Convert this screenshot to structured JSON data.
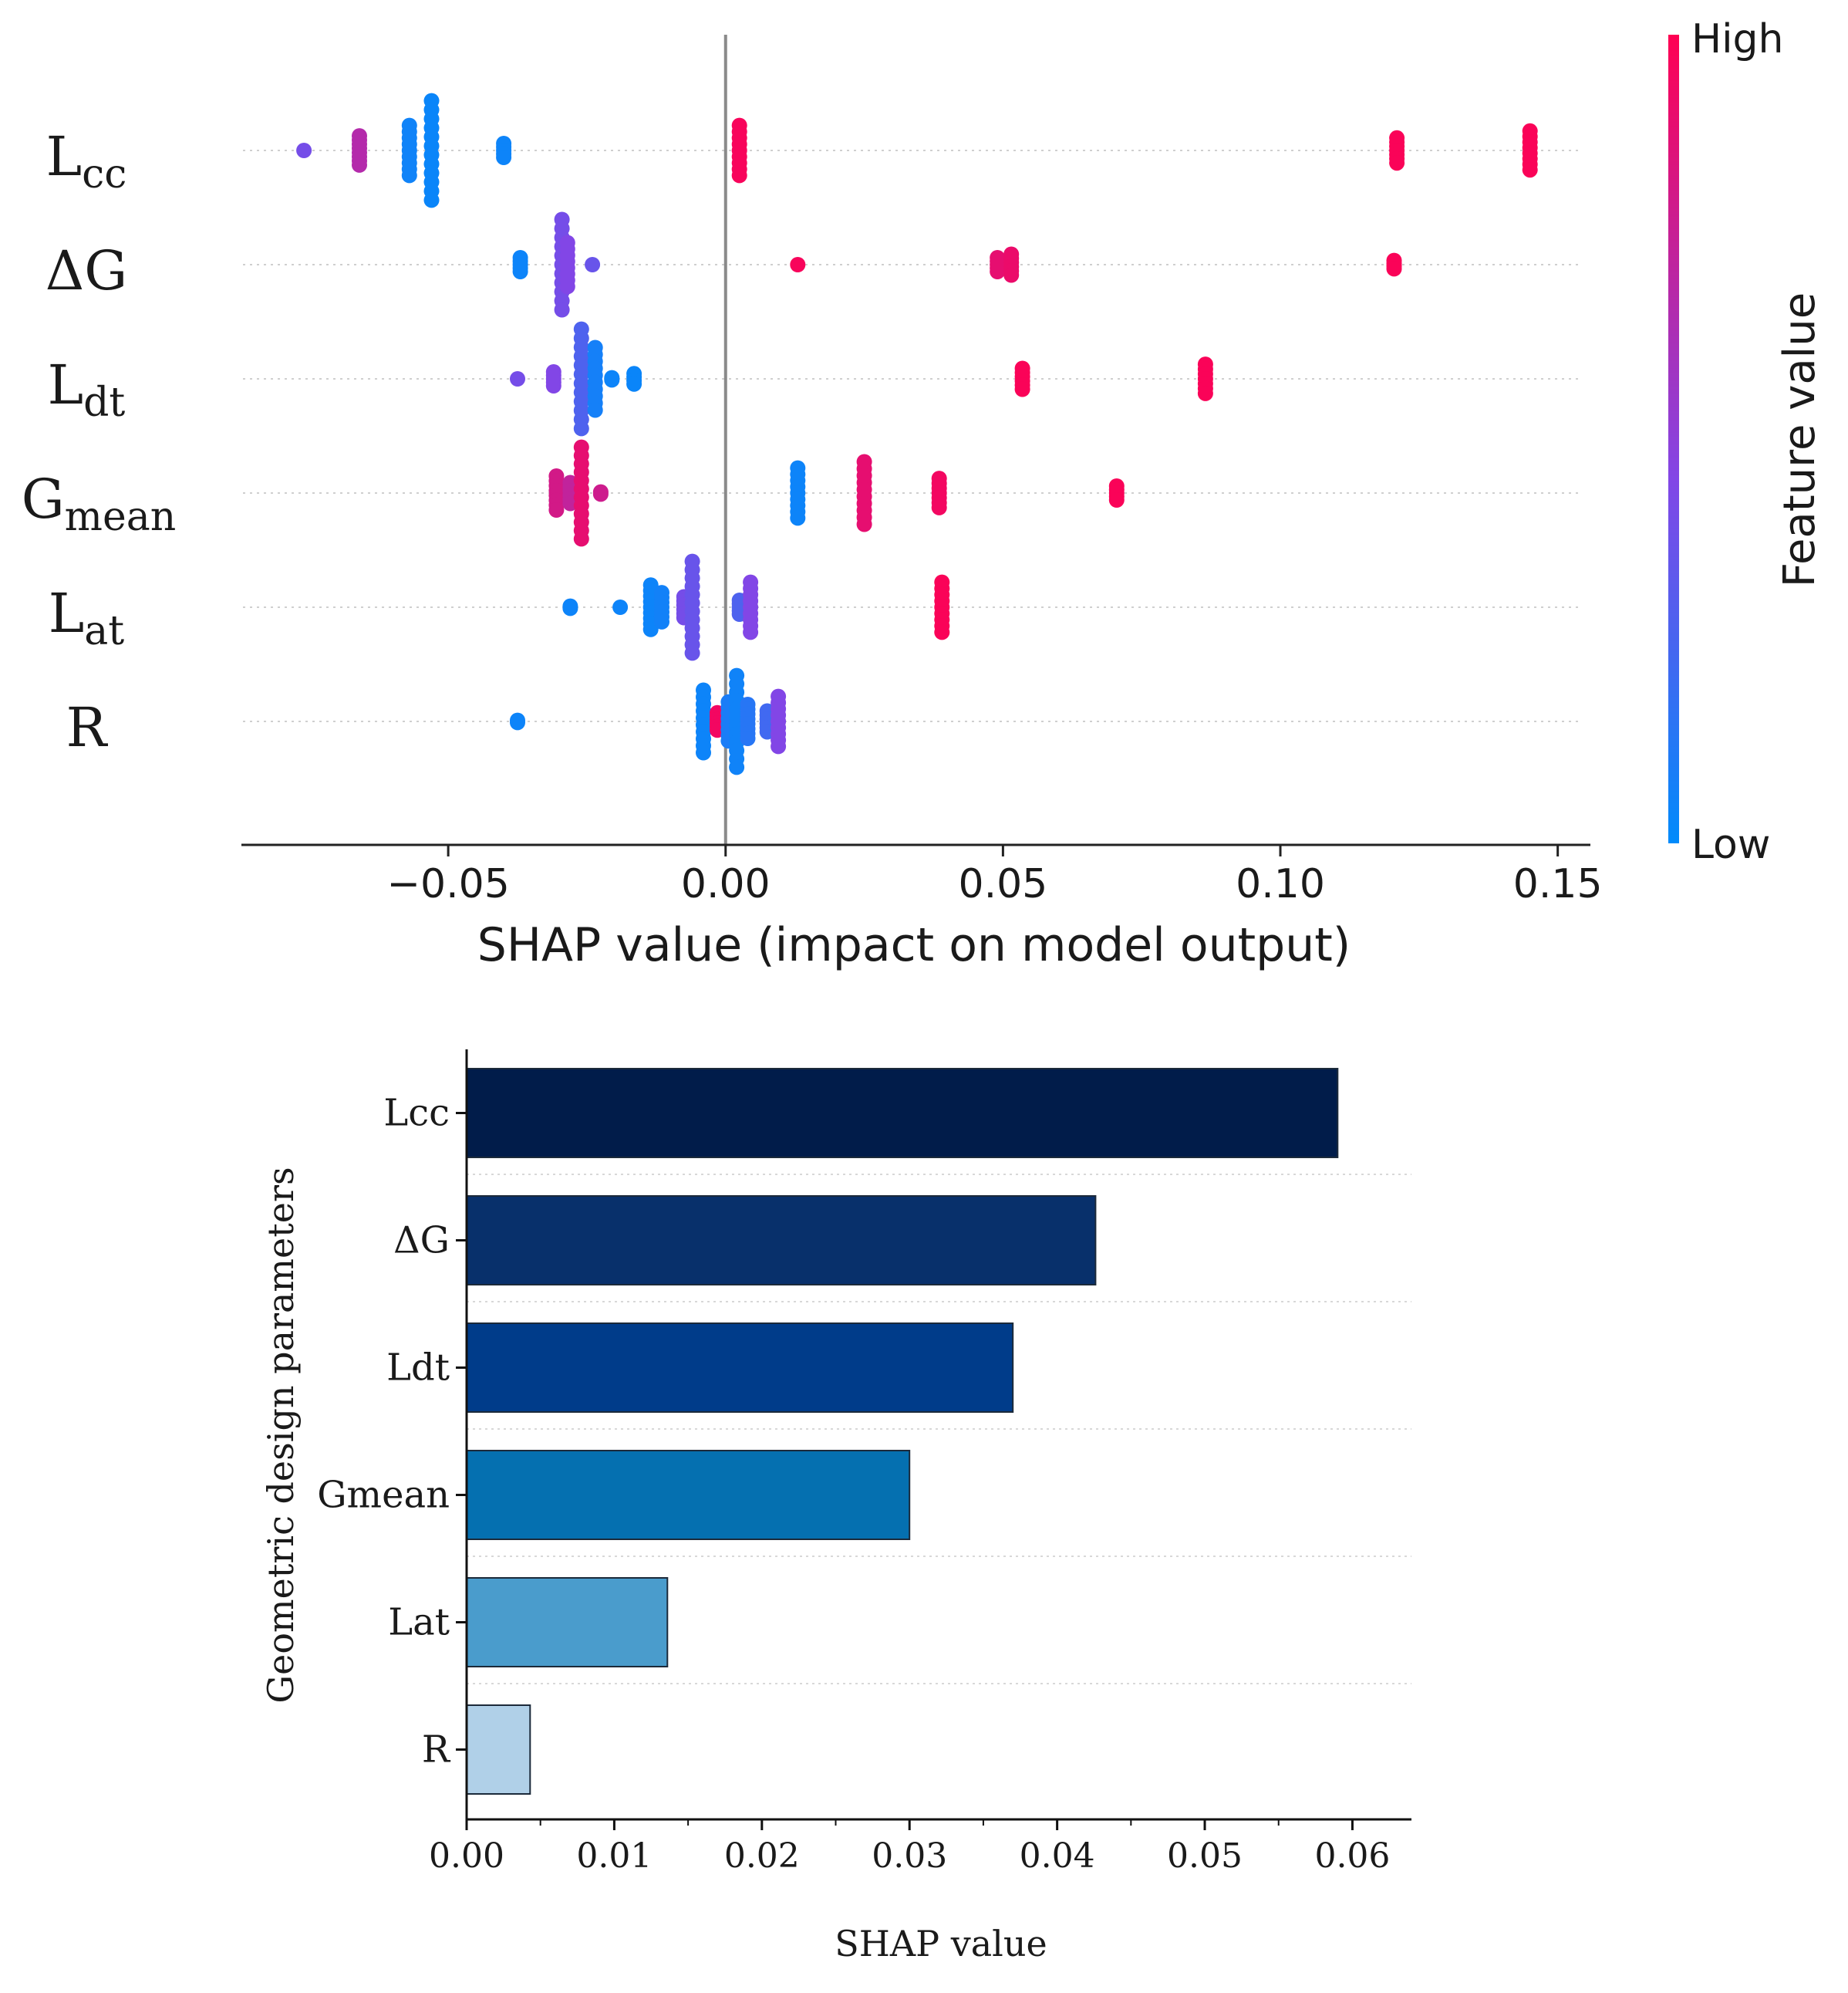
{
  "chart_data": [
    {
      "type": "scatter",
      "subtype": "shap-beeswarm",
      "xlabel": "SHAP value (impact on model output)",
      "xlim": [
        -0.087,
        0.157
      ],
      "xticks": [
        -0.05,
        0.0,
        0.05,
        0.1,
        0.15
      ],
      "xtick_labels": [
        "−0.05",
        "0.00",
        "0.05",
        "0.10",
        "0.15"
      ],
      "zero_line": 0.0,
      "features": [
        {
          "name": "Lcc",
          "base": "L",
          "sub": "cc"
        },
        {
          "name": "ΔG",
          "base": "ΔG",
          "sub": ""
        },
        {
          "name": "Ldt",
          "base": "L",
          "sub": "dt"
        },
        {
          "name": "Gmean",
          "base": "G",
          "sub": "mean"
        },
        {
          "name": "Lat",
          "base": "L",
          "sub": "at"
        },
        {
          "name": "R",
          "base": "R",
          "sub": ""
        }
      ],
      "colorbar": {
        "label": "Feature value",
        "high_label": "High",
        "low_label": "Low",
        "high_color": "#ff0052",
        "low_color": "#008bfb"
      },
      "clusters": [
        {
          "feature": 0,
          "x": -0.076,
          "n": 1,
          "spread": 0.3,
          "fv": 0.45
        },
        {
          "feature": 0,
          "x": -0.066,
          "n": 8,
          "spread": 0.6,
          "fv": 0.7
        },
        {
          "feature": 0,
          "x": -0.057,
          "n": 9,
          "spread": 0.9,
          "fv": 0.06
        },
        {
          "feature": 0,
          "x": -0.053,
          "n": 12,
          "spread": 1.3,
          "fv": 0.04
        },
        {
          "feature": 0,
          "x": -0.04,
          "n": 5,
          "spread": 0.5,
          "fv": 0.05
        },
        {
          "feature": 0,
          "x": 0.0025,
          "n": 9,
          "spread": 0.9,
          "fv": 0.97
        },
        {
          "feature": 0,
          "x": 0.121,
          "n": 7,
          "spread": 0.6,
          "fv": 0.98
        },
        {
          "feature": 0,
          "x": 0.145,
          "n": 8,
          "spread": 0.8,
          "fv": 0.98
        },
        {
          "feature": 1,
          "x": -0.037,
          "n": 5,
          "spread": 0.5,
          "fv": 0.05
        },
        {
          "feature": 1,
          "x": -0.0295,
          "n": 11,
          "spread": 1.3,
          "fv": 0.45
        },
        {
          "feature": 1,
          "x": -0.0285,
          "n": 8,
          "spread": 0.9,
          "fv": 0.5
        },
        {
          "feature": 1,
          "x": -0.024,
          "n": 1,
          "spread": 0.3,
          "fv": 0.4
        },
        {
          "feature": 1,
          "x": 0.013,
          "n": 1,
          "spread": 0.3,
          "fv": 0.97
        },
        {
          "feature": 1,
          "x": 0.049,
          "n": 5,
          "spread": 0.5,
          "fv": 0.9
        },
        {
          "feature": 1,
          "x": 0.0515,
          "n": 6,
          "spread": 0.6,
          "fv": 0.92
        },
        {
          "feature": 1,
          "x": 0.1205,
          "n": 4,
          "spread": 0.4,
          "fv": 0.98
        },
        {
          "feature": 2,
          "x": -0.0375,
          "n": 1,
          "spread": 0.3,
          "fv": 0.45
        },
        {
          "feature": 2,
          "x": -0.031,
          "n": 5,
          "spread": 0.5,
          "fv": 0.5
        },
        {
          "feature": 2,
          "x": -0.026,
          "n": 12,
          "spread": 1.3,
          "fv": 0.3
        },
        {
          "feature": 2,
          "x": -0.0235,
          "n": 10,
          "spread": 1.0,
          "fv": 0.08
        },
        {
          "feature": 2,
          "x": -0.0205,
          "n": 2,
          "spread": 0.3,
          "fv": 0.05
        },
        {
          "feature": 2,
          "x": -0.0165,
          "n": 4,
          "spread": 0.5,
          "fv": 0.04
        },
        {
          "feature": 2,
          "x": 0.0535,
          "n": 6,
          "spread": 0.6,
          "fv": 0.98
        },
        {
          "feature": 2,
          "x": 0.0865,
          "n": 7,
          "spread": 0.7,
          "fv": 0.98
        },
        {
          "feature": 3,
          "x": -0.0305,
          "n": 8,
          "spread": 0.7,
          "fv": 0.82
        },
        {
          "feature": 3,
          "x": -0.028,
          "n": 6,
          "spread": 0.6,
          "fv": 0.75
        },
        {
          "feature": 3,
          "x": -0.026,
          "n": 12,
          "spread": 1.2,
          "fv": 0.9
        },
        {
          "feature": 3,
          "x": -0.0225,
          "n": 2,
          "spread": 0.3,
          "fv": 0.8
        },
        {
          "feature": 3,
          "x": 0.013,
          "n": 9,
          "spread": 0.9,
          "fv": 0.05
        },
        {
          "feature": 3,
          "x": 0.025,
          "n": 10,
          "spread": 1.0,
          "fv": 0.9
        },
        {
          "feature": 3,
          "x": 0.0385,
          "n": 7,
          "spread": 0.7,
          "fv": 0.95
        },
        {
          "feature": 3,
          "x": 0.0705,
          "n": 5,
          "spread": 0.5,
          "fv": 0.98
        },
        {
          "feature": 4,
          "x": -0.028,
          "n": 2,
          "spread": 0.3,
          "fv": 0.05
        },
        {
          "feature": 4,
          "x": -0.019,
          "n": 1,
          "spread": 0.3,
          "fv": 0.05
        },
        {
          "feature": 4,
          "x": -0.0135,
          "n": 9,
          "spread": 0.8,
          "fv": 0.05
        },
        {
          "feature": 4,
          "x": -0.0115,
          "n": 7,
          "spread": 0.7,
          "fv": 0.07
        },
        {
          "feature": 4,
          "x": -0.0075,
          "n": 6,
          "spread": 0.6,
          "fv": 0.45
        },
        {
          "feature": 4,
          "x": -0.006,
          "n": 12,
          "spread": 1.2,
          "fv": 0.4
        },
        {
          "feature": 4,
          "x": 0.0025,
          "n": 5,
          "spread": 0.5,
          "fv": 0.3
        },
        {
          "feature": 4,
          "x": 0.0045,
          "n": 9,
          "spread": 0.9,
          "fv": 0.5
        },
        {
          "feature": 4,
          "x": 0.039,
          "n": 9,
          "spread": 0.9,
          "fv": 0.98
        },
        {
          "feature": 5,
          "x": -0.0375,
          "n": 2,
          "spread": 0.3,
          "fv": 0.05
        },
        {
          "feature": 5,
          "x": -0.004,
          "n": 10,
          "spread": 1.0,
          "fv": 0.05
        },
        {
          "feature": 5,
          "x": -0.0015,
          "n": 6,
          "spread": 0.5,
          "fv": 0.95
        },
        {
          "feature": 5,
          "x": 0.0005,
          "n": 8,
          "spread": 0.8,
          "fv": 0.1
        },
        {
          "feature": 5,
          "x": 0.002,
          "n": 12,
          "spread": 1.2,
          "fv": 0.06
        },
        {
          "feature": 5,
          "x": 0.004,
          "n": 8,
          "spread": 0.7,
          "fv": 0.15
        },
        {
          "feature": 5,
          "x": 0.0075,
          "n": 6,
          "spread": 0.6,
          "fv": 0.25
        },
        {
          "feature": 5,
          "x": 0.0095,
          "n": 9,
          "spread": 0.9,
          "fv": 0.5
        }
      ]
    },
    {
      "type": "bar",
      "orientation": "horizontal",
      "categories": [
        "Lcc",
        "ΔG",
        "Ldt",
        "Gmean",
        "Lat",
        "R"
      ],
      "values": [
        0.059,
        0.0426,
        0.037,
        0.03,
        0.0136,
        0.0043
      ],
      "colors": [
        "#011c4a",
        "#08306b",
        "#003c8a",
        "#0570b0",
        "#4a9ccc",
        "#b0d0e8"
      ],
      "xlabel": "SHAP value",
      "ylabel": "Geometric design parameters",
      "xlim": [
        0,
        0.064
      ],
      "xticks": [
        0,
        0.01,
        0.02,
        0.03,
        0.04,
        0.05,
        0.06
      ],
      "xtick_labels": [
        "0.00",
        "0.01",
        "0.02",
        "0.03",
        "0.04",
        "0.05",
        "0.06"
      ]
    }
  ]
}
